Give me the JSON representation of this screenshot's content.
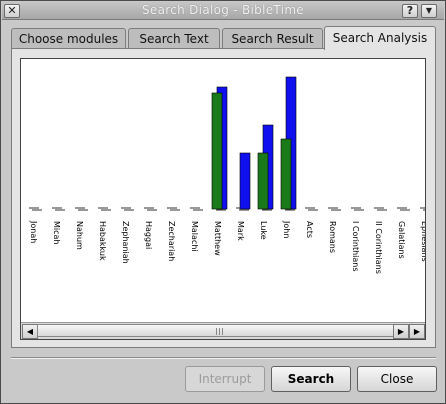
{
  "window": {
    "title": "Search Dialog - BibleTime",
    "close_glyph": "✕",
    "help_glyph": "?",
    "menu_glyph": "▼"
  },
  "tabs": [
    {
      "label": "Choose modules",
      "active": false
    },
    {
      "label": "Search Text",
      "active": false
    },
    {
      "label": "Search Result",
      "active": false
    },
    {
      "label": "Search Analysis",
      "active": true
    }
  ],
  "buttons": {
    "interrupt": "Interrupt",
    "search": "Search",
    "close": "Close"
  },
  "scrollbar": {
    "left_arrow": "◀",
    "right_arrow_1": "▶",
    "right_arrow_2": "▶"
  },
  "chart_data": {
    "type": "bar",
    "colors": {
      "series1": "#1a7a1a",
      "series2": "#1010ee"
    },
    "categories": [
      "Jonah",
      "Micah",
      "Nahum",
      "Habakkuk",
      "Zephaniah",
      "Haggai",
      "Zechariah",
      "Malachi",
      "Matthew",
      "Mark",
      "Luke",
      "John",
      "Acts",
      "Romans",
      "I Corinthians",
      "II Corinthians",
      "Galatians",
      "Ephesians"
    ],
    "series": [
      {
        "values": [
          0,
          0,
          0,
          0,
          0,
          0,
          0,
          0,
          116,
          0,
          56,
          70,
          0,
          0,
          0,
          0,
          0,
          0
        ]
      },
      {
        "values": [
          0,
          0,
          0,
          0,
          0,
          0,
          0,
          0,
          122,
          56,
          84,
          132,
          0,
          0,
          0,
          0,
          0,
          0
        ]
      }
    ],
    "ylim": [
      0,
      140
    ]
  }
}
